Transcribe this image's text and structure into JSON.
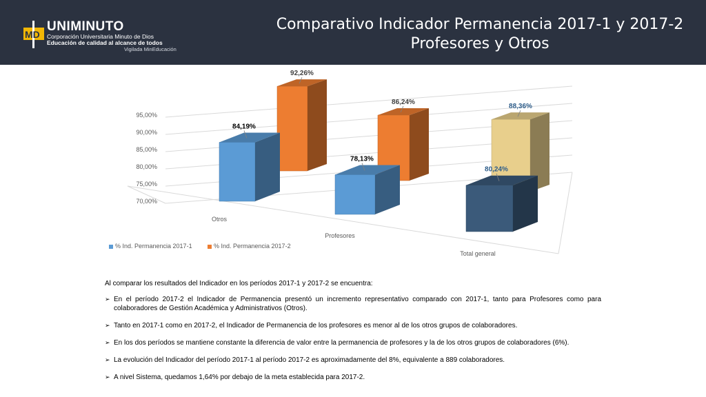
{
  "header": {
    "title_line1": "Comparativo Indicador Permanencia 2017-1 y 2017-2",
    "title_line2": "Profesores y Otros",
    "logo": {
      "mark": "MD",
      "name": "UNIMINUTO",
      "line1": "Corporación Universitaria Minuto de Dios",
      "line2": "Educación de calidad al alcance de todos",
      "line3": "Vigilada MinEducación"
    }
  },
  "chart_data": {
    "type": "bar",
    "variant": "3d-clustered",
    "categories": [
      "Otros",
      "Profesores",
      "Total general"
    ],
    "series": [
      {
        "name": "% Ind. Permanencia 2017-1",
        "values": [
          84.19,
          78.13,
          80.24
        ],
        "labels": [
          "84,19%",
          "78,13%",
          "80,24%"
        ],
        "color": "#5b9bd5"
      },
      {
        "name": "% Ind. Permanencia 2017-2",
        "values": [
          92.26,
          86.24,
          88.36
        ],
        "labels": [
          "92,26%",
          "86,24%",
          "88,36%"
        ],
        "color": "#ed7d31"
      }
    ],
    "ylim": [
      70,
      95
    ],
    "yticks": [
      "70,00%",
      "75,00%",
      "80,00%",
      "85,00%",
      "90,00%",
      "95,00%"
    ],
    "grid": true,
    "legend": "bottom-left"
  },
  "body": {
    "intro": "Al comparar los resultados del Indicador en los períodos 2017-1 y 2017-2 se encuentra:",
    "bullets": [
      "En el período 2017-2 el Indicador de Permanencia presentó un incremento representativo comparado  con 2017-1, tanto para Profesores como para colaboradores de Gestión Académica y Administrativos (Otros).",
      "Tanto en 2017-1 como en 2017-2, el Indicador de Permanencia de los profesores es menor al de los otros grupos de colaboradores.",
      "En los dos períodos se mantiene constante la diferencia de valor entre la permanencia de profesores y la de los otros grupos de colaboradores (6%).",
      "La evolución del Indicador del período 2017-1 al período 2017-2 es aproximadamente del 8%, equivalente a 889 colaboradores.",
      "A nivel Sistema, quedamos 1,64% por debajo de la meta establecida para 2017-2."
    ],
    "bullet_icon": "arrowhead-bullet-icon"
  }
}
